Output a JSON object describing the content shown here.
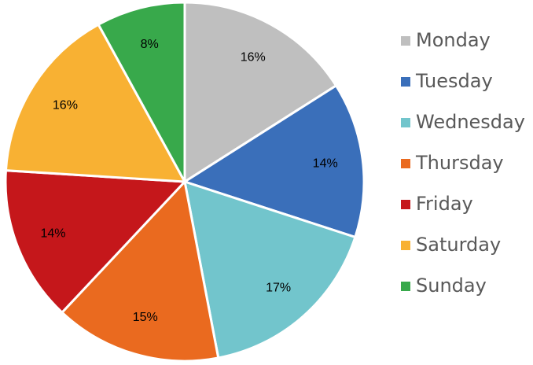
{
  "chart_data": {
    "type": "pie",
    "categories": [
      "Monday",
      "Tuesday",
      "Wednesday",
      "Thursday",
      "Friday",
      "Saturday",
      "Sunday"
    ],
    "values": [
      16,
      14,
      17,
      15,
      14,
      16,
      8
    ],
    "value_labels": [
      "16%",
      "14%",
      "17%",
      "15%",
      "14%",
      "16%",
      "8%"
    ],
    "colors": [
      "#bfbfbf",
      "#3a6fba",
      "#72c5cc",
      "#ea6a1f",
      "#c5171b",
      "#f8b133",
      "#38a94b"
    ],
    "legend": "right"
  }
}
